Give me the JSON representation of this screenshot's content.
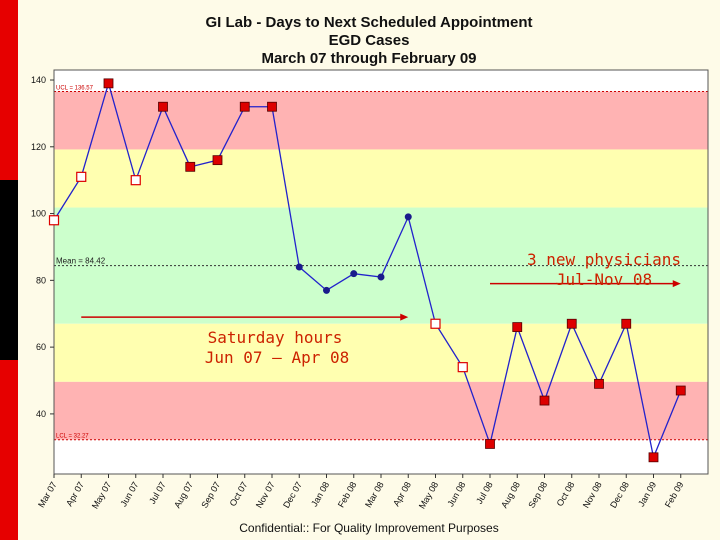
{
  "chart_data": {
    "type": "line",
    "title_lines": [
      "GI Lab - Days to Next Scheduled Appointment",
      "EGD Cases",
      "March 07 through February 09"
    ],
    "categories": [
      "Mar 07",
      "Apr 07",
      "May 07",
      "Jun 07",
      "Jul 07",
      "Aug 07",
      "Sep 07",
      "Oct 07",
      "Nov 07",
      "Dec 07",
      "Jan 08",
      "Feb 08",
      "Mar 08",
      "Apr 08",
      "May 08",
      "Jun 08",
      "Jul 08",
      "Aug 08",
      "Sep 08",
      "Oct 08",
      "Nov 08",
      "Dec 08",
      "Jan 09",
      "Feb 09"
    ],
    "values": [
      98,
      111,
      139,
      110,
      132,
      114,
      116,
      132,
      132,
      84,
      77,
      82,
      81,
      99,
      67,
      54,
      31,
      66,
      44,
      67,
      49,
      67,
      27,
      47
    ],
    "marker_style": [
      "out",
      "out",
      "red",
      "out",
      "red",
      "red",
      "red",
      "red",
      "red",
      "dot",
      "dot",
      "dot",
      "dot",
      "dot",
      "out",
      "out",
      "red",
      "red",
      "red",
      "red",
      "red",
      "red",
      "red",
      "red"
    ],
    "yticks": [
      40,
      60,
      80,
      100,
      120,
      140
    ],
    "ylim": [
      22,
      143
    ],
    "ucl": 136.57,
    "lcl": 32.27,
    "mean": 84.42,
    "ucl_label": "UCL = 136.57",
    "lcl_label": "LCL = 32.27",
    "mean_label": "Mean = 84.42",
    "bands": [
      {
        "from": 119.2,
        "to": 136.57,
        "color": "#ffb3b3"
      },
      {
        "from": 101.8,
        "to": 119.2,
        "color": "#ffffb0"
      },
      {
        "from": 67.0,
        "to": 101.8,
        "color": "#ccffcc"
      },
      {
        "from": 49.6,
        "to": 67.0,
        "color": "#ffffb0"
      },
      {
        "from": 32.27,
        "to": 49.6,
        "color": "#ffb3b3"
      }
    ],
    "colors": {
      "line": "#2222cc",
      "marker_red": "#dd0000",
      "marker_outline": "#dd0000",
      "marker_dot": "#1a1a8c",
      "annotation_text": "#cc2200",
      "annotation_arrow": "#cc0000",
      "limit_line": "#cc0000"
    },
    "annotations": [
      {
        "text": [
          "Saturday hours",
          "Jun 07 – Apr 08"
        ],
        "arrow_from": "Apr 07",
        "arrow_to": "Apr 08",
        "arrow_y": 69
      },
      {
        "text": [
          "3 new physicians",
          "Jul-Nov 08"
        ],
        "arrow_from": "Jul 08",
        "arrow_to": "Feb 09",
        "arrow_y": 79
      }
    ]
  },
  "footer": "Confidential::  For Quality Improvement Purposes"
}
